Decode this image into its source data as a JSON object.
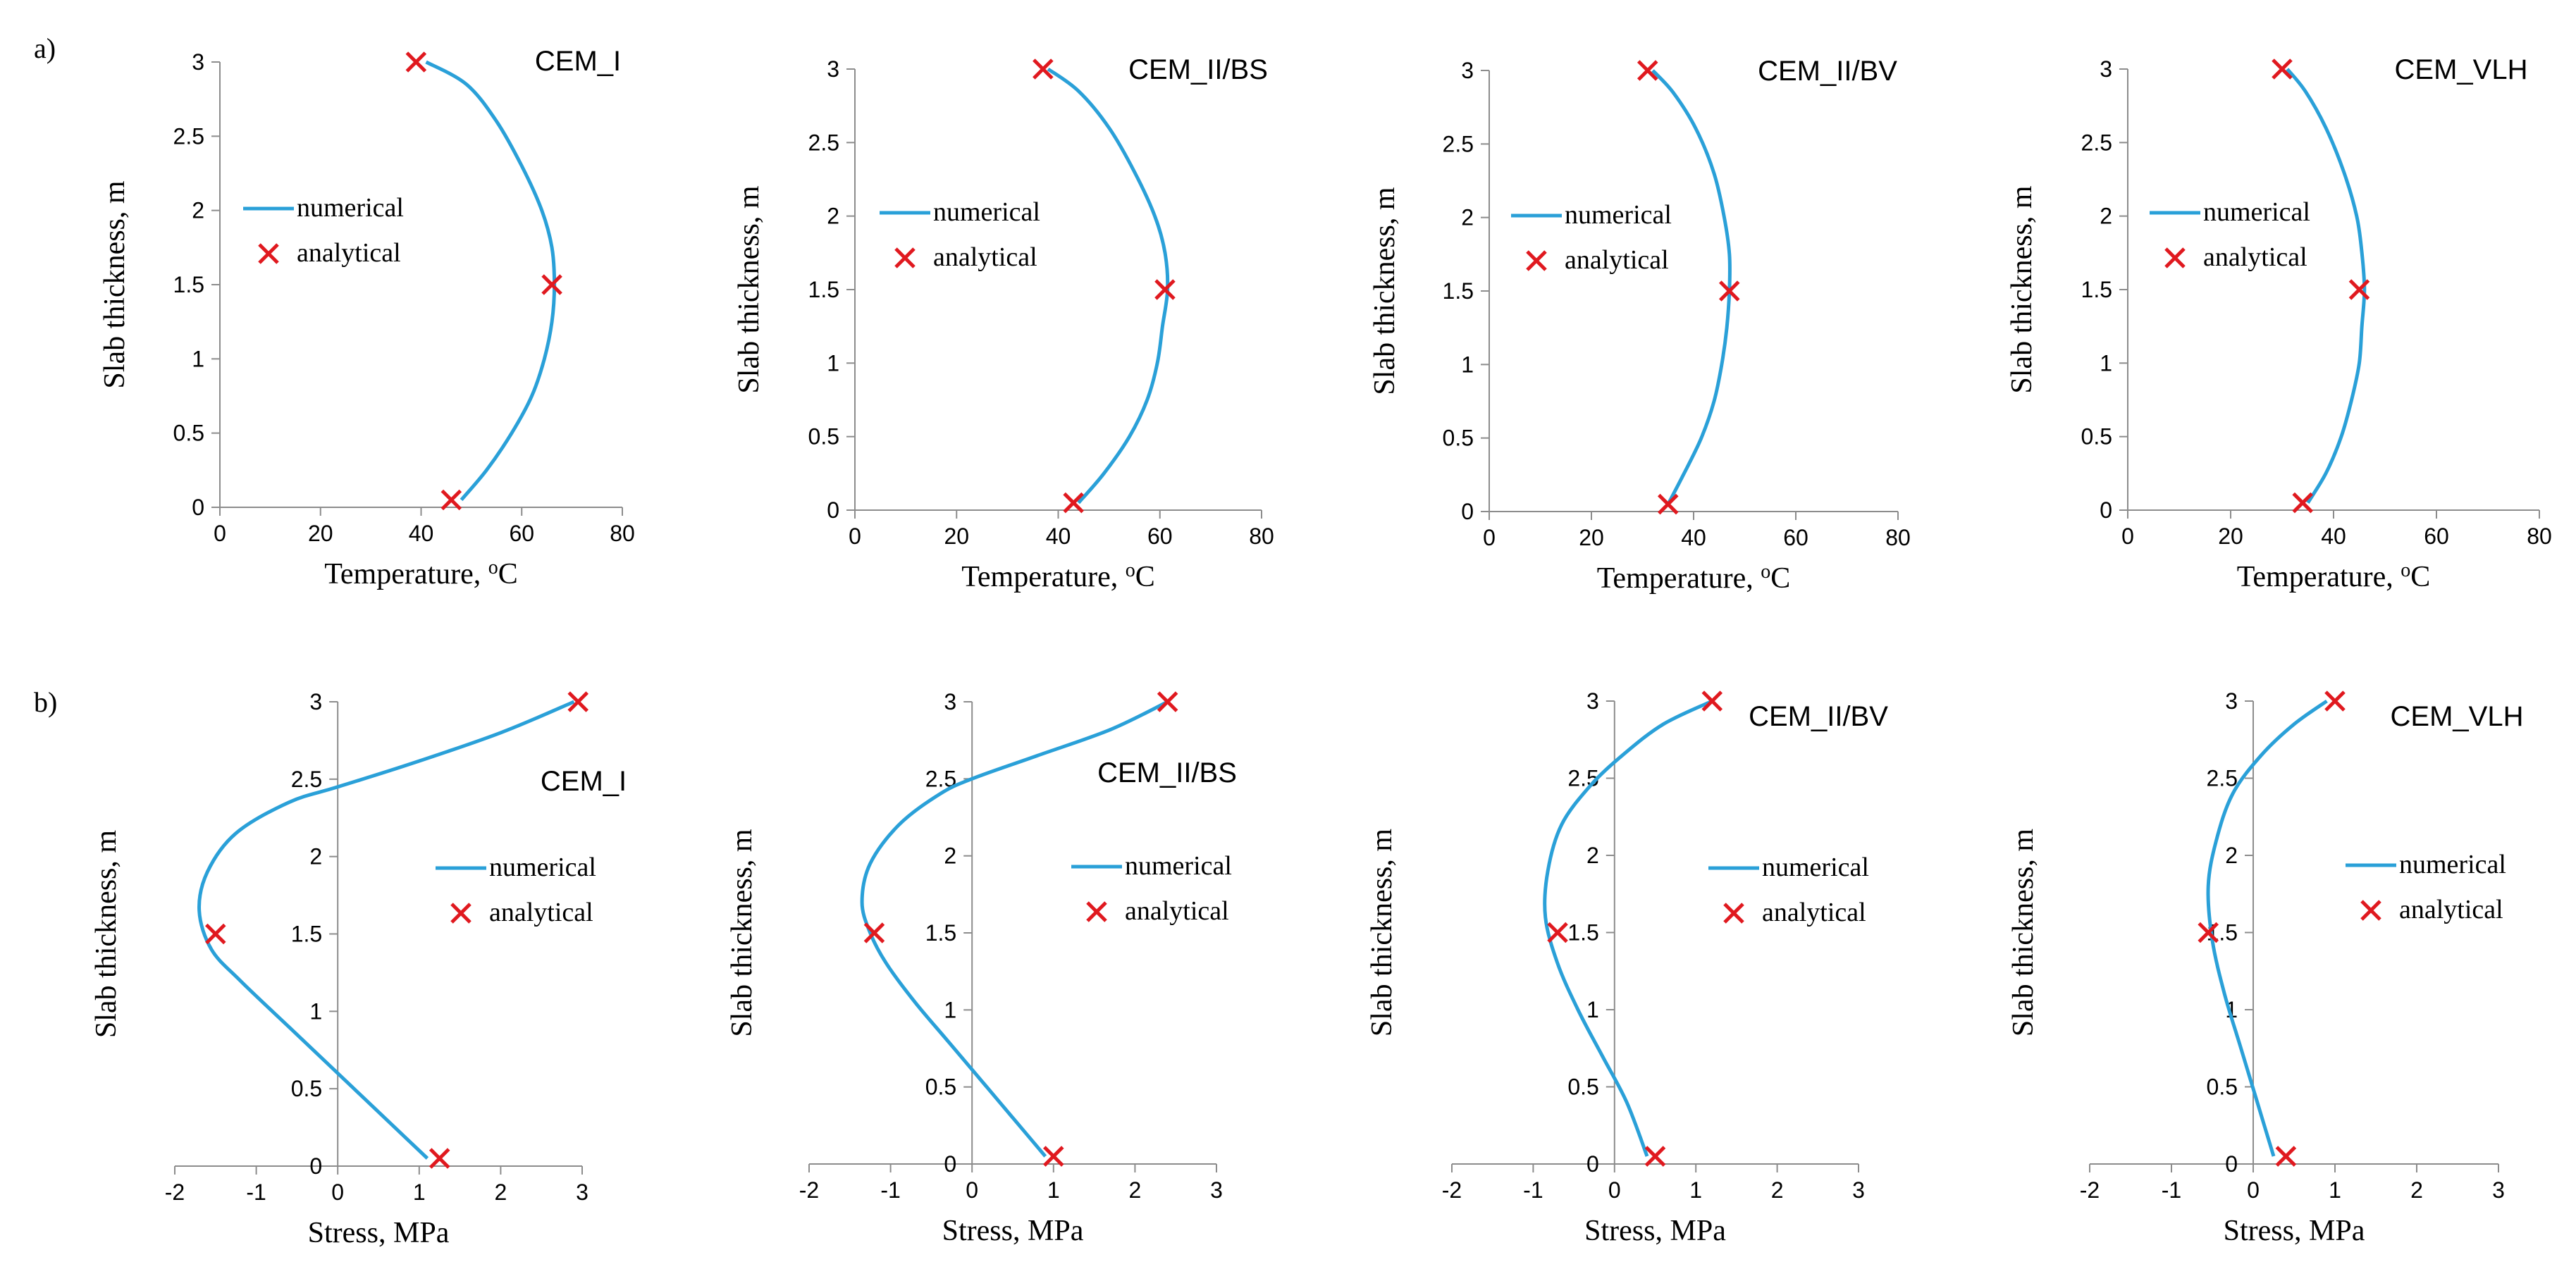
{
  "figure": {
    "panel_labels": [
      "a)",
      "b)"
    ],
    "colors": {
      "numerical": "#2aa0d8",
      "analytical": "#e0191f",
      "axis": "#8c8c8c",
      "text": "#000000"
    }
  },
  "chart_data": [
    {
      "type": "line",
      "row": "a",
      "title": "CEM_I",
      "xlabel": "Temperature, ",
      "xlabel_sup": "o",
      "xlabel_unit": "C",
      "ylabel": "Slab thickness, m",
      "xlim": [
        0,
        80
      ],
      "ylim": [
        0,
        3
      ],
      "xticks": [
        0,
        20,
        40,
        60,
        80
      ],
      "yticks": [
        0,
        0.5,
        1,
        1.5,
        2,
        2.5,
        3
      ],
      "xtick_labels": [
        "0",
        "20",
        "40",
        "60",
        "80"
      ],
      "ytick_labels": [
        "0",
        "0.5",
        "1",
        "1.5",
        "2",
        "2.5",
        "3"
      ],
      "legend": [
        "numerical",
        "analytical"
      ],
      "series": [
        {
          "name": "numerical",
          "kind": "line",
          "x": [
            48,
            53,
            58,
            62,
            64.5,
            66,
            66.5,
            66,
            64,
            60,
            55,
            49,
            41
          ],
          "y": [
            0.05,
            0.25,
            0.5,
            0.75,
            1.0,
            1.25,
            1.5,
            1.75,
            2.0,
            2.3,
            2.6,
            2.85,
            3.0
          ]
        },
        {
          "name": "analytical",
          "kind": "marker",
          "x": [
            46,
            66,
            39
          ],
          "y": [
            0.05,
            1.5,
            3.0
          ]
        }
      ]
    },
    {
      "type": "line",
      "row": "a",
      "title": "CEM_II/BS",
      "xlabel": "Temperature, ",
      "xlabel_sup": "o",
      "xlabel_unit": "C",
      "ylabel": "Slab thickness, m",
      "xlim": [
        0,
        80
      ],
      "ylim": [
        0,
        3
      ],
      "xticks": [
        0,
        20,
        40,
        60,
        80
      ],
      "yticks": [
        0,
        0.5,
        1,
        1.5,
        2,
        2.5,
        3
      ],
      "xtick_labels": [
        "0",
        "20",
        "40",
        "60",
        "80"
      ],
      "ytick_labels": [
        "0",
        "0.5",
        "1",
        "1.5",
        "2",
        "2.5",
        "3"
      ],
      "legend": [
        "numerical",
        "analytical"
      ],
      "series": [
        {
          "name": "numerical",
          "kind": "line",
          "x": [
            44,
            49,
            54,
            57.5,
            59.5,
            60.5,
            61.5,
            61,
            59,
            55,
            50,
            44,
            38
          ],
          "y": [
            0.05,
            0.25,
            0.5,
            0.75,
            1.0,
            1.25,
            1.5,
            1.75,
            2.0,
            2.3,
            2.6,
            2.85,
            3.0
          ]
        },
        {
          "name": "analytical",
          "kind": "marker",
          "x": [
            43,
            61,
            37
          ],
          "y": [
            0.05,
            1.5,
            3.0
          ]
        }
      ]
    },
    {
      "type": "line",
      "row": "a",
      "title": "CEM_II/BV",
      "xlabel": "Temperature, ",
      "xlabel_sup": "o",
      "xlabel_unit": "C",
      "ylabel": "Slab thickness, m",
      "xlim": [
        0,
        80
      ],
      "ylim": [
        0,
        3
      ],
      "xticks": [
        0,
        20,
        40,
        60,
        80
      ],
      "yticks": [
        0,
        0.5,
        1,
        1.5,
        2,
        2.5,
        3
      ],
      "xtick_labels": [
        "0",
        "20",
        "40",
        "60",
        "80"
      ],
      "ytick_labels": [
        "0",
        "0.5",
        "1",
        "1.5",
        "2",
        "2.5",
        "3"
      ],
      "legend": [
        "numerical",
        "analytical"
      ],
      "series": [
        {
          "name": "numerical",
          "kind": "line",
          "x": [
            35,
            38,
            41.5,
            44,
            45.5,
            46.5,
            47,
            47,
            46,
            44,
            40.5,
            36,
            32
          ],
          "y": [
            0.05,
            0.25,
            0.5,
            0.75,
            1.0,
            1.25,
            1.5,
            1.75,
            2.0,
            2.3,
            2.6,
            2.85,
            3.0
          ]
        },
        {
          "name": "analytical",
          "kind": "marker",
          "x": [
            35,
            47,
            31
          ],
          "y": [
            0.05,
            1.5,
            3.0
          ]
        }
      ]
    },
    {
      "type": "line",
      "row": "a",
      "title": "CEM_VLH",
      "xlabel": "Temperature, ",
      "xlabel_sup": "o",
      "xlabel_unit": "C",
      "ylabel": "Slab thickness, m",
      "xlim": [
        0,
        80
      ],
      "ylim": [
        0,
        3
      ],
      "xticks": [
        0,
        20,
        40,
        60,
        80
      ],
      "yticks": [
        0,
        0.5,
        1,
        1.5,
        2,
        2.5,
        3
      ],
      "xtick_labels": [
        "0",
        "20",
        "40",
        "60",
        "80"
      ],
      "ytick_labels": [
        "0",
        "0.5",
        "1",
        "1.5",
        "2",
        "2.5",
        "3"
      ],
      "legend": [
        "numerical",
        "analytical"
      ],
      "series": [
        {
          "name": "numerical",
          "kind": "line",
          "x": [
            35,
            38.5,
            41.5,
            43.5,
            45,
            45.5,
            46,
            45.5,
            44.5,
            42,
            38.5,
            34.5,
            31
          ],
          "y": [
            0.05,
            0.25,
            0.5,
            0.75,
            1.0,
            1.25,
            1.5,
            1.75,
            2.0,
            2.3,
            2.6,
            2.85,
            3.0
          ]
        },
        {
          "name": "analytical",
          "kind": "marker",
          "x": [
            34,
            45,
            30
          ],
          "y": [
            0.05,
            1.5,
            3.0
          ]
        }
      ]
    },
    {
      "type": "line",
      "row": "b",
      "title": "CEM_I",
      "xlabel": "Stress, MPa",
      "ylabel": "Slab thickness, m",
      "xlim": [
        -2,
        3
      ],
      "ylim": [
        0,
        3
      ],
      "xticks": [
        -2,
        -1,
        0,
        1,
        2,
        3
      ],
      "yticks": [
        0,
        0.5,
        1,
        1.5,
        2,
        2.5,
        3
      ],
      "xtick_labels": [
        "-2",
        "-1",
        "0",
        "1",
        "2",
        "3"
      ],
      "ytick_labels": [
        "0",
        "0.5",
        "1",
        "1.5",
        "2",
        "2.5",
        "3"
      ],
      "legend": [
        "numerical",
        "analytical"
      ],
      "series": [
        {
          "name": "numerical",
          "kind": "line",
          "x": [
            1.1,
            0.7,
            0.3,
            -0.1,
            -0.6,
            -1.2,
            -1.55,
            -1.7,
            -1.6,
            -1.25,
            -0.6,
            0.0,
            0.9,
            2.0,
            2.9
          ],
          "y": [
            0.05,
            0.25,
            0.45,
            0.65,
            0.9,
            1.2,
            1.4,
            1.65,
            1.9,
            2.15,
            2.35,
            2.45,
            2.6,
            2.8,
            3.0
          ]
        },
        {
          "name": "analytical",
          "kind": "marker",
          "x": [
            1.25,
            -1.5,
            2.95
          ],
          "y": [
            0.05,
            1.5,
            3.0
          ]
        }
      ]
    },
    {
      "type": "line",
      "row": "b",
      "title": "CEM_II/BS",
      "xlabel": "Stress, MPa",
      "ylabel": "Slab thickness, m",
      "xlim": [
        -2,
        3
      ],
      "ylim": [
        0,
        3
      ],
      "xticks": [
        -2,
        -1,
        0,
        1,
        2,
        3
      ],
      "yticks": [
        0,
        0.5,
        1,
        1.5,
        2,
        2.5,
        3
      ],
      "xtick_labels": [
        "-2",
        "-1",
        "0",
        "1",
        "2",
        "3"
      ],
      "ytick_labels": [
        "0",
        "0.5",
        "1",
        "1.5",
        "2",
        "2.5",
        "3"
      ],
      "legend": [
        "numerical",
        "analytical"
      ],
      "series": [
        {
          "name": "numerical",
          "kind": "line",
          "x": [
            0.9,
            0.5,
            0.1,
            -0.3,
            -0.7,
            -1.05,
            -1.25,
            -1.35,
            -1.25,
            -0.9,
            -0.4,
            0.0,
            0.8,
            1.7,
            2.4
          ],
          "y": [
            0.05,
            0.3,
            0.55,
            0.8,
            1.05,
            1.3,
            1.5,
            1.7,
            1.95,
            2.2,
            2.4,
            2.5,
            2.65,
            2.82,
            3.0
          ]
        },
        {
          "name": "analytical",
          "kind": "marker",
          "x": [
            1.0,
            -1.2,
            2.4
          ],
          "y": [
            0.05,
            1.5,
            3.0
          ]
        }
      ]
    },
    {
      "type": "line",
      "row": "b",
      "title": "CEM_II/BV",
      "xlabel": "Stress, MPa",
      "ylabel": "Slab thickness, m",
      "xlim": [
        -2,
        3
      ],
      "ylim": [
        0,
        3
      ],
      "xticks": [
        -2,
        -1,
        0,
        1,
        2,
        3
      ],
      "yticks": [
        0,
        0.5,
        1,
        1.5,
        2,
        2.5,
        3
      ],
      "xtick_labels": [
        "-2",
        "-1",
        "0",
        "1",
        "2",
        "3"
      ],
      "ytick_labels": [
        "0",
        "0.5",
        "1",
        "1.5",
        "2",
        "2.5",
        "3"
      ],
      "legend": [
        "numerical",
        "analytical"
      ],
      "series": [
        {
          "name": "numerical",
          "kind": "line",
          "x": [
            0.4,
            0.15,
            -0.15,
            -0.45,
            -0.7,
            -0.85,
            -0.82,
            -0.65,
            -0.3,
            0.1,
            0.6,
            1.2
          ],
          "y": [
            0.05,
            0.4,
            0.7,
            1.0,
            1.3,
            1.6,
            1.9,
            2.2,
            2.45,
            2.65,
            2.85,
            3.0
          ]
        },
        {
          "name": "analytical",
          "kind": "marker",
          "x": [
            0.5,
            -0.7,
            1.2
          ],
          "y": [
            0.05,
            1.5,
            3.0
          ]
        }
      ]
    },
    {
      "type": "line",
      "row": "b",
      "title": "CEM_VLH",
      "xlabel": "Stress, MPa",
      "ylabel": "Slab thickness, m",
      "xlim": [
        -2,
        3
      ],
      "ylim": [
        0,
        3
      ],
      "xticks": [
        -2,
        -1,
        0,
        1,
        2,
        3
      ],
      "yticks": [
        0,
        0.5,
        1,
        1.5,
        2,
        2.5,
        3
      ],
      "xtick_labels": [
        "-2",
        "-1",
        "0",
        "1",
        "2",
        "3"
      ],
      "ytick_labels": [
        "0",
        "0.5",
        "1",
        "1.5",
        "2",
        "2.5",
        "3"
      ],
      "legend": [
        "numerical",
        "analytical"
      ],
      "series": [
        {
          "name": "numerical",
          "kind": "line",
          "x": [
            0.25,
            0.05,
            -0.15,
            -0.35,
            -0.5,
            -0.55,
            -0.45,
            -0.25,
            0.1,
            0.5,
            0.9
          ],
          "y": [
            0.05,
            0.4,
            0.75,
            1.1,
            1.45,
            1.8,
            2.1,
            2.4,
            2.65,
            2.85,
            3.0
          ]
        },
        {
          "name": "analytical",
          "kind": "marker",
          "x": [
            0.4,
            -0.55,
            1.0
          ],
          "y": [
            0.05,
            1.5,
            3.0
          ]
        }
      ]
    }
  ]
}
